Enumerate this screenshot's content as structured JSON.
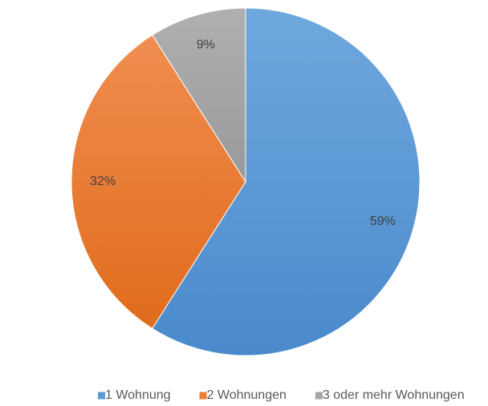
{
  "chart_data": {
    "type": "pie",
    "categories": [
      "1 Wohnung",
      "2 Wohnungen",
      "3 oder mehr Wohnungen"
    ],
    "values": [
      59,
      32,
      9
    ],
    "value_labels": [
      "59%",
      "32%",
      "9%"
    ],
    "colors": [
      "#5b9bd5",
      "#ed7d31",
      "#a5a5a5"
    ],
    "legend": "bottom"
  }
}
